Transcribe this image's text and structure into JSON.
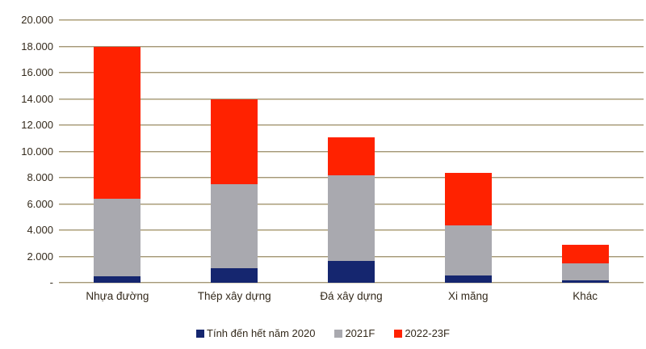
{
  "chart_data": {
    "type": "bar",
    "stacked": true,
    "title": "",
    "xlabel": "",
    "ylabel": "",
    "categories": [
      "Nhựa đường",
      "Thép xây dựng",
      "Đá xây dựng",
      "Xi măng",
      "Khác"
    ],
    "series": [
      {
        "name": "Tính đến hết năm 2020",
        "color": "#15266F",
        "values": [
          500,
          1100,
          1650,
          550,
          200
        ]
      },
      {
        "name": "2021F",
        "color": "#A9A9AF",
        "values": [
          5900,
          6400,
          6550,
          3850,
          1300
        ]
      },
      {
        "name": "2022-23F",
        "color": "#FF2200",
        "values": [
          11600,
          6500,
          2900,
          4000,
          1400
        ]
      }
    ],
    "stack_totals": [
      18000,
      14000,
      11100,
      8400,
      2900
    ],
    "ylim": [
      0,
      20000
    ],
    "ytick_step": 2000,
    "ytick_labels": [
      "-",
      "2.000",
      "4.000",
      "6.000",
      "8.000",
      "10.000",
      "12.000",
      "14.000",
      "16.000",
      "18.000",
      "20.000"
    ],
    "grid": "horizontal",
    "legend_position": "bottom",
    "colors": {
      "gridline": "#a2977a",
      "text": "#342a1c",
      "background": "#ffffff"
    }
  }
}
